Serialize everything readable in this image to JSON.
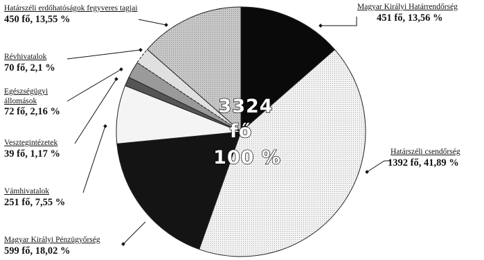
{
  "chart_data": {
    "type": "pie",
    "center_total": "3324",
    "center_unit": "fő",
    "center_percent": "100 %",
    "slices": [
      {
        "name": "Magyar Királyi Határrendőrség",
        "value": 451,
        "percent": 13.56,
        "value_label": "451 fő, 13,56 %",
        "color": "#0a0a0a",
        "pattern": "solid"
      },
      {
        "name": "Határszéli csendőrség",
        "value": 1392,
        "percent": 41.89,
        "value_label": "1392 fő, 41,89 %",
        "color": "#f2f2f2",
        "pattern": "stipple"
      },
      {
        "name": "Magyar Királyi Pénzügyőrség",
        "value": 599,
        "percent": 18.02,
        "value_label": "599 fő, 18,02 %",
        "color": "#141414",
        "pattern": "solid"
      },
      {
        "name": "Vámhivatalok",
        "value": 251,
        "percent": 7.55,
        "value_label": "251 fő, 7,55 %",
        "color": "#f4f4f4",
        "pattern": "solid"
      },
      {
        "name": "Vesztegintézetek",
        "value": 39,
        "percent": 1.17,
        "value_label": "39 fő, 1,17 %",
        "color": "#555555",
        "pattern": "solid"
      },
      {
        "name": "Egészségügyi állomások",
        "value": 72,
        "percent": 2.16,
        "value_label": "72 fő, 2,16 %",
        "color": "#9a9a9a",
        "pattern": "solid"
      },
      {
        "name": "Révhivatalok",
        "value": 70,
        "percent": 2.1,
        "value_label": "70 fő, 2,1 %",
        "color": "#e0e0e0",
        "pattern": "solid"
      },
      {
        "name": "Határszéli erdőhatóságok fegyveres tagjai",
        "value": 450,
        "percent": 13.55,
        "value_label": "450 fő, 13,55 %",
        "color": "#c4c4c4",
        "pattern": "stipple"
      }
    ]
  }
}
